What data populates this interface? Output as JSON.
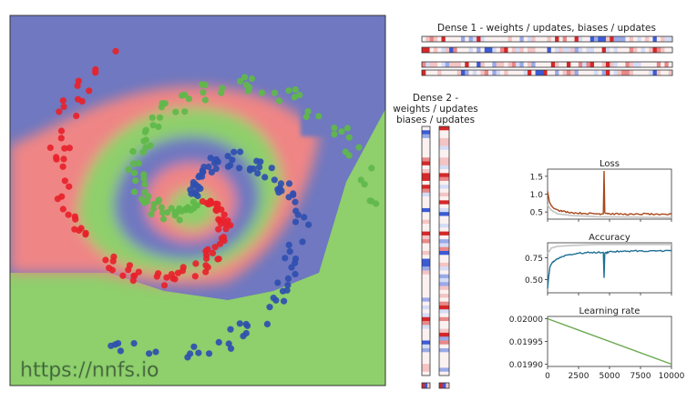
{
  "colors": {
    "blue_region": "#6f78c0",
    "green_region": "#8fcf6c",
    "red_region": "#ef8585",
    "blue_point": "#2f4fb0",
    "green_point": "#5fb84a",
    "red_point": "#e8222a",
    "loss_line": "#a8471a",
    "accuracy_line": "#1f6f95",
    "lr_line": "#6aa84f",
    "val_line": "#c8c8c8",
    "heat_red": "#d62728",
    "heat_blue": "#3b5bd6"
  },
  "watermark": "https://nnfs.io",
  "dense1": {
    "title": "Dense 1 - weights / updates, biases / updates"
  },
  "dense2": {
    "title_lines": [
      "Dense 2 -",
      "weights / updates",
      "biases / updates"
    ]
  },
  "chart_data": [
    {
      "type": "line",
      "title": "Loss",
      "x_range": [
        0,
        10000
      ],
      "ylim": [
        0.3,
        1.7
      ],
      "yticks": [
        0.5,
        1.0,
        1.5
      ],
      "ytick_labels": [
        "0.5",
        "1.0",
        "1.5"
      ],
      "series": [
        {
          "x": [
            0,
            150,
            300,
            500,
            800,
            1200,
            2000,
            3000,
            4000,
            4500,
            4560,
            4620,
            5000,
            6000,
            7000,
            8000,
            9000,
            10000
          ],
          "y": [
            1.08,
            0.78,
            0.68,
            0.6,
            0.56,
            0.52,
            0.48,
            0.46,
            0.45,
            0.45,
            1.65,
            0.48,
            0.45,
            0.44,
            0.43,
            0.45,
            0.42,
            0.44
          ]
        },
        {
          "x": [
            0,
            300,
            800,
            2000,
            4000,
            6000,
            8000,
            10000
          ],
          "y": [
            0.7,
            0.55,
            0.45,
            0.4,
            0.37,
            0.36,
            0.35,
            0.34
          ]
        }
      ]
    },
    {
      "type": "line",
      "title": "Accuracy",
      "x_range": [
        0,
        10000
      ],
      "ylim": [
        0.35,
        0.92
      ],
      "yticks": [
        0.5,
        0.75
      ],
      "ytick_labels": [
        "0.50",
        "0.75"
      ],
      "series": [
        {
          "x": [
            0,
            100,
            200,
            400,
            800,
            1500,
            2500,
            3500,
            4500,
            4560,
            4620,
            5000,
            6000,
            7000,
            8000,
            9000,
            10000
          ],
          "y": [
            0.4,
            0.55,
            0.65,
            0.7,
            0.74,
            0.78,
            0.8,
            0.81,
            0.81,
            0.52,
            0.8,
            0.82,
            0.82,
            0.83,
            0.82,
            0.83,
            0.83
          ]
        },
        {
          "x": [
            0,
            300,
            800,
            2000,
            4000,
            6000,
            8000,
            10000
          ],
          "y": [
            0.8,
            0.86,
            0.88,
            0.89,
            0.9,
            0.9,
            0.9,
            0.9
          ]
        }
      ]
    },
    {
      "type": "line",
      "title": "Learning rate",
      "x_range": [
        0,
        10000
      ],
      "ylim": [
        0.019895,
        0.020005
      ],
      "yticks": [
        0.0199,
        0.01995,
        0.02
      ],
      "ytick_labels": [
        "0.01990",
        "0.01995",
        "0.02000"
      ],
      "xticks": [
        0,
        2500,
        5000,
        7500,
        10000
      ],
      "xtick_labels": [
        "0",
        "2500",
        "5000",
        "7500",
        "10000"
      ],
      "series": [
        {
          "x": [
            0,
            10000
          ],
          "y": [
            0.02,
            0.0199
          ]
        }
      ]
    }
  ]
}
